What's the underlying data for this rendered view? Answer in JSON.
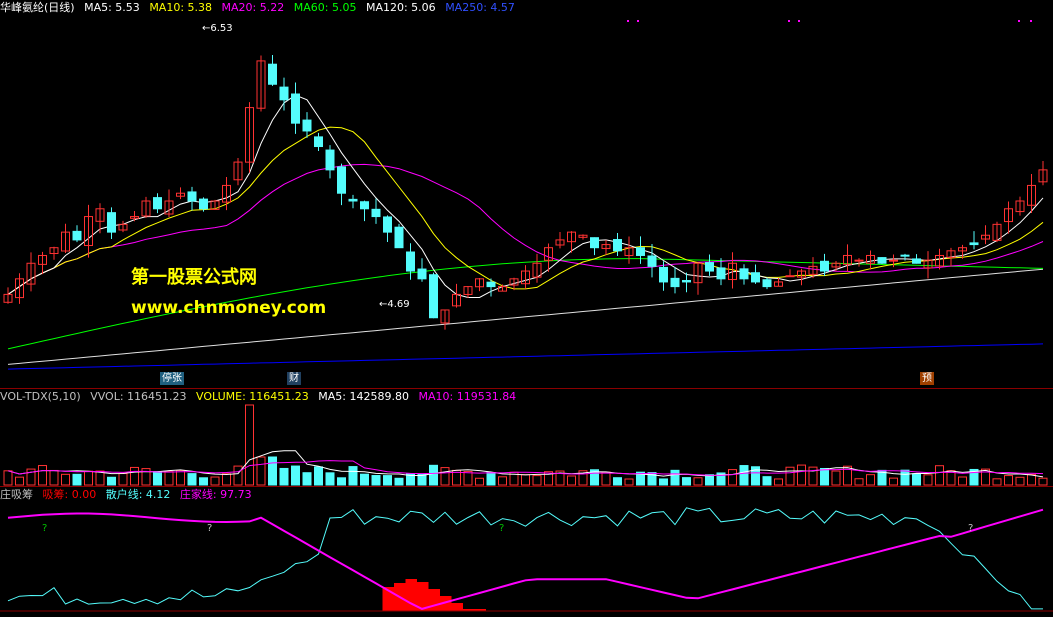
{
  "main": {
    "title": "华峰氨纶(日线)",
    "ma": [
      {
        "label": "MA5: 5.53",
        "color": "#ffffff"
      },
      {
        "label": "MA10: 5.38",
        "color": "#ffff00"
      },
      {
        "label": "MA20: 5.22",
        "color": "#ff00ff"
      },
      {
        "label": "MA60: 5.05",
        "color": "#00ff00"
      },
      {
        "label": "MA120: 5.06",
        "color": "#ffffff"
      },
      {
        "label": "MA250: 4.57",
        "color": "#0000ff"
      }
    ],
    "high_label": "6.53",
    "low_label": "4.69",
    "watermark_line1": "第一股票公式网",
    "watermark_line2": "www.chnmoney.com",
    "markers": [
      "停张",
      "财",
      "预"
    ]
  },
  "volume": {
    "legend": [
      {
        "label": "VOL-TDX(5,10)",
        "color": "#c0c0c0"
      },
      {
        "label": "VVOL: 116451.23",
        "color": "#c0c0c0"
      },
      {
        "label": "VOLUME: 116451.23",
        "color": "#ffff00"
      },
      {
        "label": "MA5: 142589.80",
        "color": "#ffffff"
      },
      {
        "label": "MA10: 119531.84",
        "color": "#ff00ff"
      }
    ]
  },
  "zhuang": {
    "legend": [
      {
        "label": "庄吸筹",
        "color": "#c0c0c0"
      },
      {
        "label": "吸筹: 0.00",
        "color": "#ff0000"
      },
      {
        "label": "散户线: 4.12",
        "color": "#54fcfc"
      },
      {
        "label": "庄家线: 97.73",
        "color": "#ff00ff"
      }
    ],
    "question_mark": "?"
  },
  "colors": {
    "up": "#ff3232",
    "down": "#54fcfc",
    "ma5": "#ffffff",
    "ma10": "#ffff00",
    "ma20": "#ff00ff",
    "ma60": "#00ff00",
    "ma120": "#e0e0e0",
    "ma250": "#0000ff"
  },
  "chart_data": {
    "type": "candlestick",
    "closes": [
      4.9,
      5.0,
      5.1,
      5.15,
      5.2,
      5.3,
      5.25,
      5.4,
      5.45,
      5.3,
      5.35,
      5.4,
      5.5,
      5.45,
      5.5,
      5.55,
      5.5,
      5.45,
      5.5,
      5.6,
      5.75,
      6.1,
      6.4,
      6.25,
      6.15,
      6.0,
      5.95,
      5.85,
      5.7,
      5.55,
      5.5,
      5.45,
      5.4,
      5.3,
      5.2,
      5.05,
      5.0,
      4.75,
      4.8,
      4.9,
      4.95,
      5.0,
      4.95,
      4.95,
      5.0,
      5.05,
      5.1,
      5.2,
      5.25,
      5.3,
      5.28,
      5.2,
      5.22,
      5.18,
      5.2,
      5.15,
      5.08,
      4.98,
      4.95,
      4.98,
      5.1,
      5.05,
      5.0,
      5.1,
      5.0,
      4.98,
      4.95,
      4.98,
      5.02,
      5.05,
      5.08,
      5.05,
      5.1,
      5.15,
      5.12,
      5.15,
      5.1,
      5.12,
      5.15,
      5.1,
      5.12,
      5.15,
      5.18,
      5.2,
      5.22,
      5.28,
      5.35,
      5.45,
      5.5,
      5.6,
      5.7
    ]
  }
}
